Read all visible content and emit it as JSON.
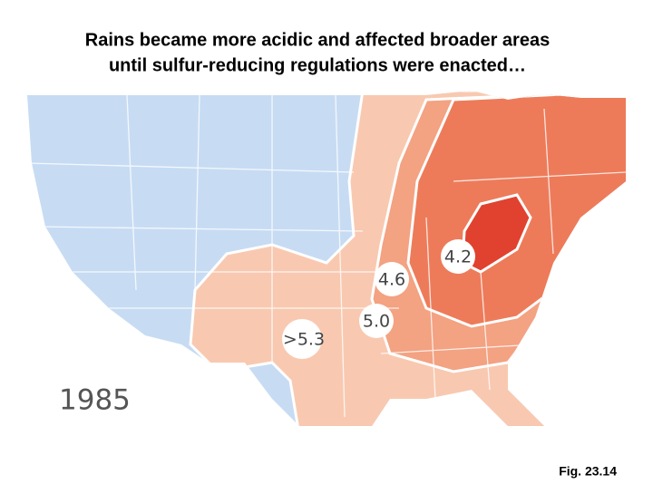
{
  "title": [
    "Rains became more acidic and affected broader areas",
    "until sulfur-reducing regulations were enacted…"
  ],
  "map": {
    "year": "1985",
    "zones": [
      {
        "label": "4.2"
      },
      {
        "label": "4.6"
      },
      {
        "label": "5.0"
      },
      {
        "label": ">5.3"
      }
    ]
  },
  "caption": "Fig. 23.14"
}
